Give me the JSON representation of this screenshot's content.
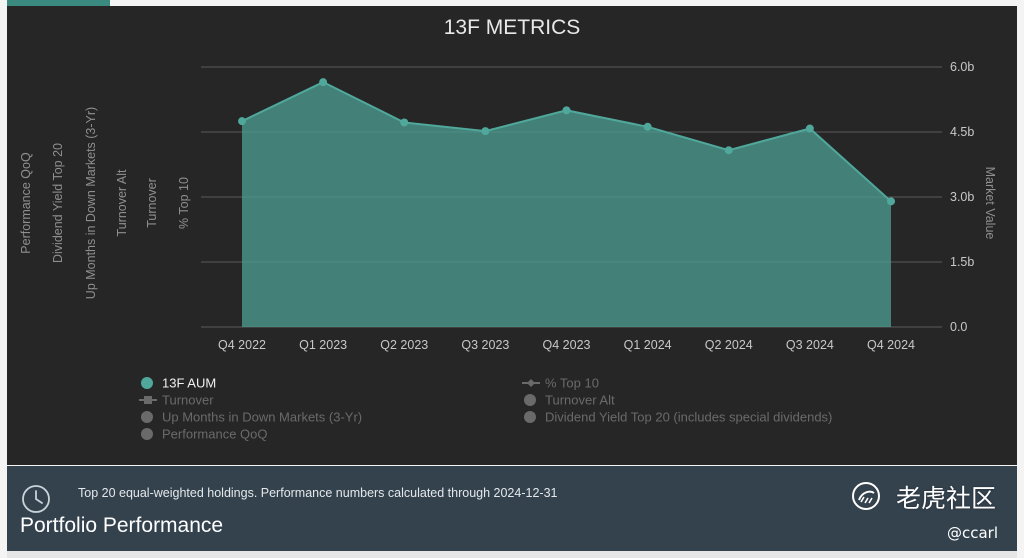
{
  "chart_data": {
    "type": "area",
    "title": "13F METRICS",
    "categories": [
      "Q4 2022",
      "Q1 2023",
      "Q2 2023",
      "Q3 2023",
      "Q4 2023",
      "Q1 2024",
      "Q2 2024",
      "Q3 2024",
      "Q4 2024"
    ],
    "series": [
      {
        "name": "13F AUM",
        "values": [
          4.75,
          5.65,
          4.72,
          4.52,
          5.0,
          4.62,
          4.08,
          4.58,
          2.9
        ]
      }
    ],
    "y_axis": {
      "label": "Market Value",
      "position": "right",
      "ylim": [
        0,
        6.0
      ],
      "ticks": [
        "0.0",
        "1.5b",
        "3.0b",
        "4.5b",
        "6.0b"
      ]
    },
    "left_axis_titles": [
      "Performance QoQ",
      "Dividend Yield Top 20",
      "Up Months in Down Markets (3-Yr)",
      "Turnover Alt",
      "Turnover",
      "% Top 10"
    ],
    "grid": true,
    "legend": {
      "placement": "bottom",
      "items": [
        {
          "label": "13F AUM",
          "marker": "circle",
          "active": true
        },
        {
          "label": "% Top 10",
          "marker": "line-diamond",
          "active": false
        },
        {
          "label": "Turnover",
          "marker": "line-square",
          "active": false
        },
        {
          "label": "Turnover Alt",
          "marker": "circle",
          "active": false
        },
        {
          "label": "Up Months in Down Markets (3-Yr)",
          "marker": "circle",
          "active": false
        },
        {
          "label": "Dividend Yield Top 20 (includes special dividends)",
          "marker": "circle",
          "active": false
        },
        {
          "label": "Performance QoQ",
          "marker": "circle",
          "active": false
        }
      ]
    },
    "colors": {
      "series_line": "#4fa89b",
      "area_fill": "#4b9a90",
      "grid": "#5a5a5a",
      "legend_inactive": "#6a6a6a"
    }
  },
  "footer": {
    "icon": "clock-icon",
    "note": "Top 20 equal-weighted holdings. Performance numbers calculated through 2024-12-31",
    "title": "Portfolio Performance"
  },
  "watermark": {
    "text": "老虎社区",
    "user": "@ccarl"
  }
}
